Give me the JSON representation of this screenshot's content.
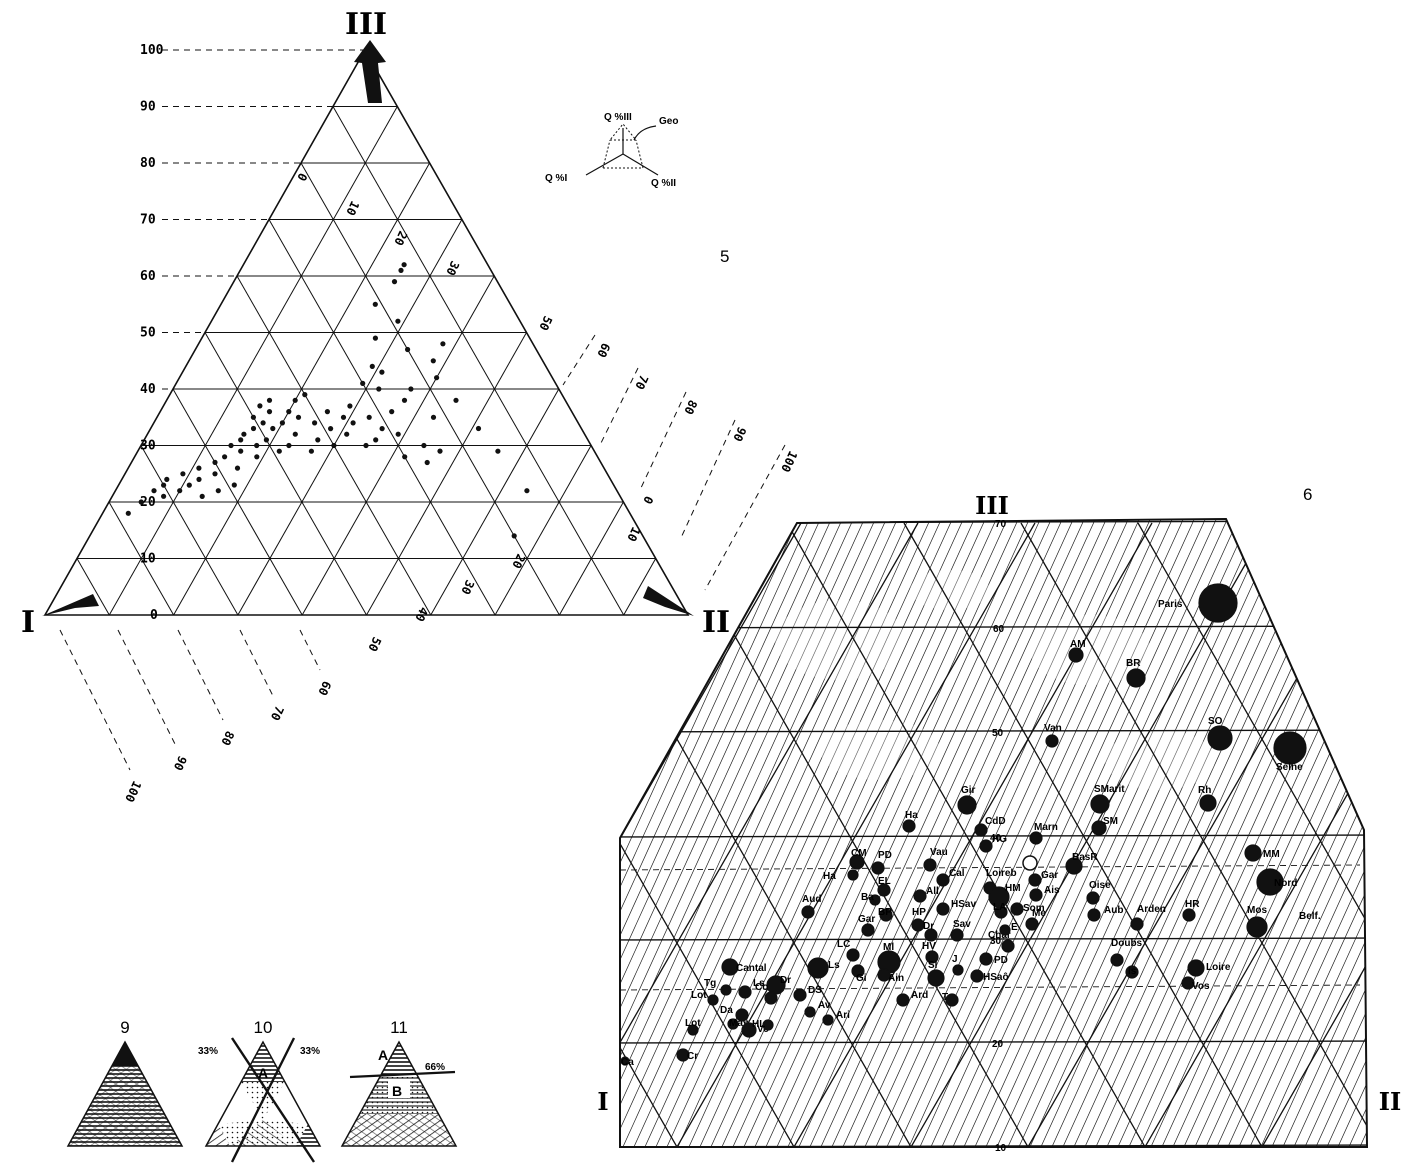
{
  "figure": {
    "label_5": "5",
    "label_6": "6",
    "label_9": "9",
    "label_10": "10",
    "label_11": "11"
  },
  "legend": {
    "q3": "Q %III",
    "q1": "Q %I",
    "q2": "Q %II",
    "geo": "Geo"
  },
  "fig10_labels": [
    "33%",
    "33%",
    "A"
  ],
  "fig11_labels": [
    "A",
    "66%",
    "B"
  ],
  "chart_data": [
    {
      "type": "scatter",
      "chart": "ternary",
      "corner_labels": [
        "I",
        "II",
        "III"
      ],
      "axis_III_ticks": [
        0,
        10,
        20,
        30,
        40,
        50,
        60,
        70,
        80,
        90,
        100
      ],
      "axis_I_ticks": [
        100,
        90,
        80,
        70,
        60,
        50
      ],
      "axis_II_ticks": [
        0,
        10,
        20,
        30,
        40,
        50,
        60,
        70,
        80,
        90,
        100
      ],
      "grid": true,
      "points_III_I_II": [
        [
          18,
          78,
          4
        ],
        [
          20,
          75,
          5
        ],
        [
          22,
          72,
          6
        ],
        [
          21,
          71,
          8
        ],
        [
          23,
          70,
          7
        ],
        [
          24,
          69,
          7
        ],
        [
          22,
          68,
          10
        ],
        [
          23,
          66,
          11
        ],
        [
          25,
          66,
          9
        ],
        [
          21,
          65,
          14
        ],
        [
          24,
          64,
          12
        ],
        [
          26,
          63,
          11
        ],
        [
          22,
          62,
          16
        ],
        [
          25,
          61,
          14
        ],
        [
          27,
          60,
          13
        ],
        [
          23,
          59,
          18
        ],
        [
          28,
          58,
          14
        ],
        [
          26,
          57,
          17
        ],
        [
          30,
          56,
          14
        ],
        [
          29,
          55,
          16
        ],
        [
          31,
          54,
          15
        ],
        [
          28,
          53,
          19
        ],
        [
          32,
          53,
          15
        ],
        [
          30,
          52,
          18
        ],
        [
          33,
          51,
          16
        ],
        [
          35,
          50,
          15
        ],
        [
          31,
          50,
          19
        ],
        [
          34,
          49,
          17
        ],
        [
          29,
          49,
          22
        ],
        [
          37,
          48,
          15
        ],
        [
          33,
          48,
          19
        ],
        [
          36,
          47,
          17
        ],
        [
          30,
          47,
          23
        ],
        [
          38,
          46,
          16
        ],
        [
          34,
          46,
          20
        ],
        [
          32,
          45,
          23
        ],
        [
          36,
          44,
          20
        ],
        [
          29,
          44,
          27
        ],
        [
          35,
          43,
          22
        ],
        [
          38,
          42,
          20
        ],
        [
          31,
          42,
          27
        ],
        [
          34,
          41,
          25
        ],
        [
          39,
          40,
          21
        ],
        [
          30,
          40,
          30
        ],
        [
          33,
          39,
          28
        ],
        [
          36,
          38,
          26
        ],
        [
          32,
          37,
          31
        ],
        [
          35,
          36,
          29
        ],
        [
          30,
          35,
          35
        ],
        [
          34,
          35,
          31
        ],
        [
          37,
          34,
          29
        ],
        [
          31,
          33,
          36
        ],
        [
          35,
          32,
          33
        ],
        [
          33,
          31,
          36
        ],
        [
          28,
          30,
          42
        ],
        [
          32,
          29,
          39
        ],
        [
          36,
          28,
          36
        ],
        [
          27,
          27,
          46
        ],
        [
          30,
          26,
          44
        ],
        [
          40,
          28,
          32
        ],
        [
          38,
          25,
          37
        ],
        [
          29,
          24,
          47
        ],
        [
          35,
          22,
          43
        ],
        [
          41,
          30,
          29
        ],
        [
          44,
          27,
          29
        ],
        [
          49,
          24,
          27
        ],
        [
          52,
          19,
          29
        ],
        [
          55,
          21,
          24
        ],
        [
          59,
          16,
          25
        ],
        [
          61,
          14,
          25
        ],
        [
          62,
          13,
          25
        ],
        [
          47,
          20,
          33
        ],
        [
          42,
          18,
          40
        ],
        [
          38,
          17,
          45
        ],
        [
          33,
          16,
          51
        ],
        [
          29,
          15,
          56
        ],
        [
          22,
          14,
          64
        ],
        [
          14,
          20,
          66
        ],
        [
          48,
          14,
          38
        ],
        [
          45,
          17,
          38
        ],
        [
          40,
          23,
          37
        ],
        [
          43,
          26,
          31
        ]
      ]
    },
    {
      "type": "scatter",
      "chart": "ternary-zoom",
      "corner_labels": [
        "I",
        "II",
        "III"
      ],
      "axis_III_ticks": [
        70,
        60,
        50,
        40,
        30,
        20,
        10
      ],
      "grid": true,
      "labels": [
        "Paris",
        "AM",
        "BR",
        "Van",
        "SO",
        "Seine",
        "Gir",
        "SMarit",
        "Rh",
        "Ha",
        "CdD",
        "HG",
        "SM",
        "Marn",
        "PD",
        "Vau",
        "Cal",
        "Loireb",
        "Gar",
        "MM",
        "Ha",
        "CM",
        "Ais",
        "Nord",
        "BasR",
        "EL",
        "All",
        "HM",
        "Ba",
        "Som",
        "Oise",
        "BP",
        "HSav",
        "LA",
        "HR",
        "Mos",
        "Belf.",
        "Aud",
        "HP",
        "Aub",
        "Arden",
        "Me",
        "Gar",
        "Dr",
        "Sav",
        "Char",
        "E",
        "Doubs",
        "Ml",
        "PD",
        "LC",
        "Gi",
        "Ain",
        "HV",
        "Is",
        "Loire",
        "Vos",
        "Sl",
        "J",
        "HSaô",
        "Cantal",
        "Lot",
        "Dr",
        "Co",
        "DS",
        "Tg",
        "Ls",
        "Av",
        "Lot",
        "Da",
        "Ard",
        "T",
        "Ari",
        "May",
        "Ve",
        "HL",
        "Ls",
        "Cr",
        "Ca"
      ]
    }
  ]
}
